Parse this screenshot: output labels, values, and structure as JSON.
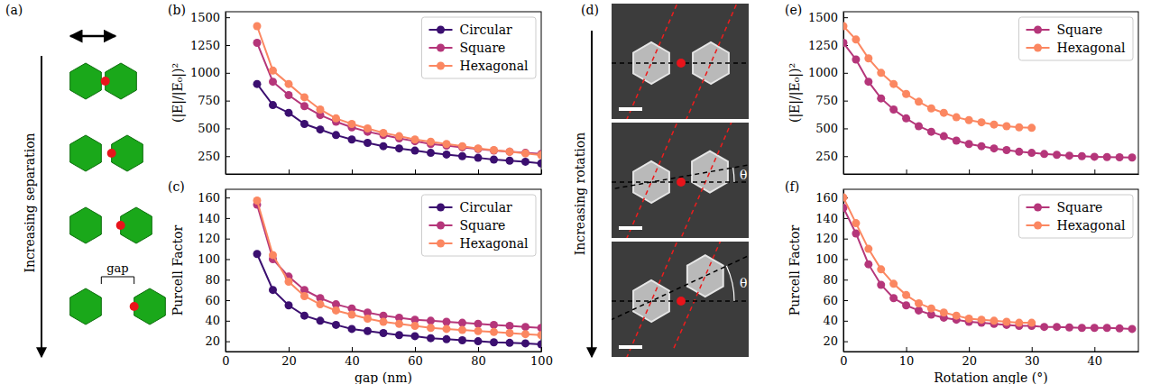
{
  "chart_data": [
    {
      "type": "line",
      "panel": "(b)",
      "y_label": "(|E|/|E₀|)²",
      "x": [
        10,
        15,
        20,
        25,
        30,
        35,
        40,
        45,
        50,
        55,
        60,
        65,
        70,
        75,
        80,
        85,
        90,
        95,
        100
      ],
      "xlim": [
        0,
        100
      ],
      "xticks": [
        0,
        20,
        40,
        60,
        80,
        100
      ],
      "ylim": [
        90,
        1550
      ],
      "yticks": [
        250,
        500,
        750,
        1000,
        1250,
        1500
      ],
      "tick_labels": "y",
      "legend": "upper right",
      "series": [
        {
          "name": "Circular",
          "color": "#3b0f70",
          "marker": "circle",
          "values": [
            900,
            710,
            640,
            540,
            490,
            440,
            400,
            370,
            340,
            320,
            300,
            280,
            265,
            250,
            235,
            220,
            210,
            200,
            185
          ]
        },
        {
          "name": "Square",
          "color": "#b5367a",
          "marker": "circle",
          "values": [
            1270,
            920,
            800,
            700,
            620,
            560,
            510,
            470,
            440,
            410,
            385,
            360,
            345,
            330,
            315,
            300,
            290,
            280,
            270
          ]
        },
        {
          "name": "Hexagonal",
          "color": "#fb8761",
          "marker": "circle",
          "values": [
            1420,
            1020,
            900,
            780,
            670,
            590,
            540,
            500,
            460,
            430,
            400,
            380,
            360,
            340,
            320,
            305,
            290,
            275,
            260
          ]
        }
      ]
    },
    {
      "type": "line",
      "panel": "(c)",
      "x_label": "gap (nm)",
      "y_label": "Purcell Factor",
      "x": [
        10,
        15,
        20,
        25,
        30,
        35,
        40,
        45,
        50,
        55,
        60,
        65,
        70,
        75,
        80,
        85,
        90,
        95,
        100
      ],
      "xlim": [
        0,
        100
      ],
      "xticks": [
        0,
        20,
        40,
        60,
        80,
        100
      ],
      "ylim": [
        10,
        168
      ],
      "yticks": [
        20,
        40,
        60,
        80,
        100,
        120,
        140,
        160
      ],
      "legend": "upper right",
      "series": [
        {
          "name": "Circular",
          "color": "#3b0f70",
          "marker": "circle",
          "values": [
            105,
            70,
            55,
            45,
            40,
            36,
            32,
            30,
            28,
            26,
            25,
            23,
            22,
            21,
            20,
            19,
            18.5,
            18,
            17
          ]
        },
        {
          "name": "Square",
          "color": "#b5367a",
          "marker": "circle",
          "values": [
            153,
            100,
            83,
            70,
            62,
            56,
            52,
            48,
            45,
            43,
            41,
            40,
            39,
            38,
            37,
            36,
            35,
            34,
            33
          ]
        },
        {
          "name": "Hexagonal",
          "color": "#fb8761",
          "marker": "circle",
          "values": [
            157,
            104,
            78,
            64,
            56,
            50,
            46,
            42,
            39,
            37,
            35,
            33,
            32,
            31,
            30,
            29,
            28,
            27,
            26
          ]
        }
      ]
    },
    {
      "type": "line",
      "panel": "(e)",
      "y_label": "(|E|/|E₀|)²",
      "xlim": [
        0,
        47
      ],
      "xticks": [
        0,
        10,
        20,
        30,
        40
      ],
      "ylim": [
        90,
        1550
      ],
      "yticks": [
        250,
        500,
        750,
        1000,
        1250,
        1500
      ],
      "tick_labels": "y",
      "legend": "upper right",
      "series": [
        {
          "name": "Square",
          "color": "#b5367a",
          "marker": "circle",
          "x": [
            0,
            2,
            4,
            6,
            8,
            10,
            12,
            14,
            16,
            18,
            20,
            22,
            24,
            26,
            28,
            30,
            32,
            34,
            36,
            38,
            40,
            42,
            44,
            46
          ],
          "values": [
            1270,
            1120,
            920,
            770,
            670,
            590,
            520,
            470,
            430,
            390,
            360,
            340,
            320,
            305,
            290,
            280,
            270,
            262,
            255,
            250,
            245,
            242,
            240,
            238
          ]
        },
        {
          "name": "Hexagonal",
          "color": "#fb8761",
          "marker": "circle",
          "x": [
            0,
            2,
            4,
            6,
            8,
            10,
            12,
            14,
            16,
            18,
            20,
            22,
            24,
            26,
            28,
            30
          ],
          "values": [
            1420,
            1300,
            1130,
            1000,
            900,
            810,
            740,
            680,
            640,
            600,
            575,
            555,
            535,
            520,
            510,
            505
          ]
        }
      ]
    },
    {
      "type": "line",
      "panel": "(f)",
      "x_label": "Rotation angle (°)",
      "y_label": "Purcell Factor",
      "xlim": [
        0,
        47
      ],
      "xticks": [
        0,
        10,
        20,
        30,
        40
      ],
      "ylim": [
        10,
        168
      ],
      "yticks": [
        20,
        40,
        60,
        80,
        100,
        120,
        140,
        160
      ],
      "legend": "upper right",
      "series": [
        {
          "name": "Square",
          "color": "#b5367a",
          "marker": "circle",
          "x": [
            0,
            2,
            4,
            6,
            8,
            10,
            12,
            14,
            16,
            18,
            20,
            22,
            24,
            26,
            28,
            30,
            32,
            34,
            36,
            38,
            40,
            42,
            44,
            46
          ],
          "values": [
            150,
            125,
            95,
            75,
            62,
            55,
            50,
            46,
            43,
            41,
            39,
            38,
            37,
            36,
            35,
            35,
            34,
            34,
            33.5,
            33,
            33,
            33,
            32.5,
            32
          ]
        },
        {
          "name": "Hexagonal",
          "color": "#fb8761",
          "marker": "circle",
          "x": [
            0,
            2,
            4,
            6,
            8,
            10,
            12,
            14,
            16,
            18,
            20,
            22,
            24,
            26,
            28,
            30
          ],
          "values": [
            160,
            135,
            110,
            90,
            76,
            65,
            57,
            52,
            48,
            45,
            42,
            41,
            40,
            39,
            38,
            38
          ]
        }
      ]
    }
  ],
  "diagram_a": {
    "panel": "(a)",
    "arrow_label": "Increasing separation",
    "gap_label": "gap"
  },
  "diagram_d": {
    "panel": "(d)",
    "arrow_label": "Increasing rotation",
    "angle_label": "θ"
  }
}
